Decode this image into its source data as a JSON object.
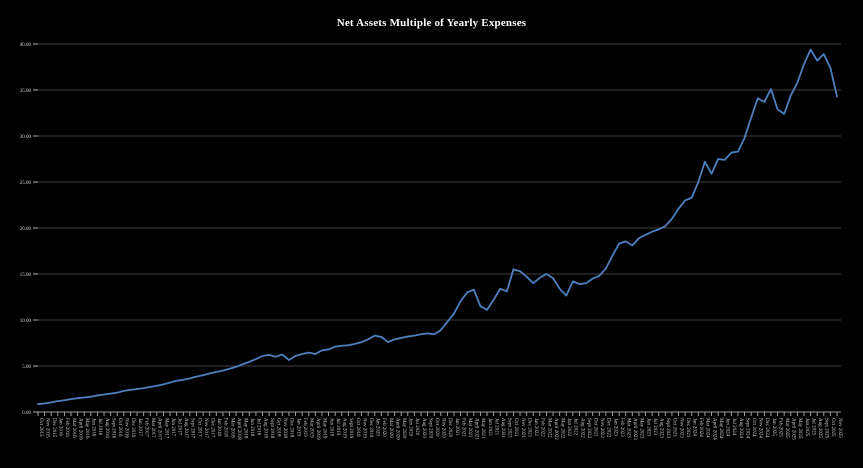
{
  "chart_data": {
    "type": "line",
    "title": "Net Assets Multiple of Yearly Expenses",
    "xlabel": "",
    "ylabel": "",
    "ylim": [
      0,
      40
    ],
    "ytick_step": 5,
    "y_tick_labels": [
      "0.00",
      "5.00",
      "10.00",
      "15.00",
      "20.00",
      "25.00",
      "30.00",
      "35.00",
      "40.00"
    ],
    "grid": "horizontal",
    "legend": "none",
    "colors": {
      "background": "#000000",
      "line": "#4e7fbe",
      "gridline": "#3f3f3f",
      "axis": "#9a9a9a",
      "tick": "#b0b0b0",
      "tick_label": "#d8d8d8",
      "title": "#ffffff"
    },
    "x": [
      "Oct 2015",
      "Nov 2015",
      "Dec 2015",
      "Jan 2016",
      "Feb 2016",
      "Mar 2016",
      "April 2016",
      "May 2016",
      "Jun 2016",
      "Jul 2016",
      "Aug 2016",
      "Sept 2016",
      "Oct 2016",
      "Nov 2016",
      "Dec 2016",
      "Jan 2017",
      "Feb 2017",
      "Mar 2017",
      "April 2017",
      "May 2017",
      "Jun 2017",
      "Jul 2017",
      "Aug 2017",
      "Sept 2017",
      "Oct 2017",
      "Nov 2017",
      "Dec 2017",
      "Jan 2018",
      "Feb 2018",
      "Mar 2018",
      "April 2018",
      "May 2018",
      "Jun 2018",
      "Jul 2018",
      "Aug 2018",
      "Sept 2018",
      "Oct 2018",
      "Nov 2018",
      "Dec 2018",
      "Jan 2019",
      "Feb 2019",
      "Mar 2019",
      "April 2019",
      "May 2019",
      "Jun 2019",
      "Jul 2019",
      "Aug 2019",
      "Sept 2019",
      "Oct 2019",
      "Nov 2019",
      "Dec 2019",
      "Jan 2020",
      "Feb 2020",
      "Mar 2020",
      "April 2020",
      "May 2020",
      "Jun 2020",
      "Jul 2020",
      "Aug 2020",
      "Sept 2020",
      "Oct 2020",
      "Nov 2020",
      "Dec 2020",
      "Jan 2021",
      "Feb 2021",
      "Mar 2021",
      "April 2021",
      "May 2021",
      "Jun 2021",
      "Jul 2021",
      "Aug 2021",
      "Sept 2021",
      "Oct 2021",
      "Nov 2021",
      "Dec 2021",
      "Jan 2022",
      "Feb 2022",
      "Mar 2022",
      "April 2022",
      "May 2022",
      "Jun 2022",
      "Jul 2022",
      "Aug 2022",
      "Sept 2022",
      "Oct 2022",
      "Nov 2022",
      "Dec 2022",
      "Jan 2023",
      "Feb 2023",
      "Mar 2023",
      "April 2023",
      "May 2023",
      "Jun 2023",
      "Jul 2023",
      "Aug 2023",
      "Sept 2023",
      "Oct 2023",
      "Nov 2023",
      "Dec 2023",
      "Jan 2024",
      "Feb 2024",
      "Mar 2024",
      "April 2024",
      "May 2024",
      "Jun 2024",
      "Jul 2024",
      "Aug 2024",
      "Sept 2024",
      "Oct 2024",
      "Nov 2024",
      "Dec 2024",
      "Jan 2025",
      "Feb 2025",
      "Mar 2025",
      "April 2025",
      "May 2025",
      "Jun 2025",
      "Jul 2025",
      "Aug 2025",
      "Sept 2025",
      "Oct 2025",
      "Nov 2025"
    ],
    "values": [
      0.85,
      0.92,
      1.05,
      1.18,
      1.28,
      1.4,
      1.5,
      1.58,
      1.66,
      1.8,
      1.9,
      2.0,
      2.1,
      2.3,
      2.4,
      2.5,
      2.6,
      2.72,
      2.85,
      3.0,
      3.2,
      3.4,
      3.5,
      3.65,
      3.85,
      4.0,
      4.2,
      4.35,
      4.5,
      4.7,
      4.9,
      5.2,
      5.45,
      5.75,
      6.1,
      6.2,
      6.0,
      6.25,
      5.65,
      6.1,
      6.3,
      6.45,
      6.3,
      6.7,
      6.8,
      7.1,
      7.2,
      7.25,
      7.4,
      7.6,
      7.9,
      8.3,
      8.15,
      7.6,
      7.9,
      8.05,
      8.2,
      8.3,
      8.45,
      8.55,
      8.45,
      8.9,
      9.8,
      10.7,
      12.05,
      13.0,
      13.3,
      11.5,
      11.1,
      12.2,
      13.4,
      13.1,
      15.5,
      15.3,
      14.7,
      14.0,
      14.6,
      15.0,
      14.55,
      13.4,
      12.65,
      14.2,
      13.9,
      14.0,
      14.5,
      14.8,
      15.6,
      17.0,
      18.3,
      18.55,
      18.1,
      18.9,
      19.25,
      19.6,
      19.85,
      20.2,
      21.0,
      22.1,
      23.0,
      23.3,
      25.0,
      27.2,
      25.9,
      27.5,
      27.4,
      28.2,
      28.3,
      29.8,
      32.0,
      34.1,
      33.7,
      35.1,
      32.9,
      32.4,
      34.4,
      35.8,
      37.8,
      39.4,
      38.2,
      38.9,
      37.4,
      34.3
    ]
  }
}
